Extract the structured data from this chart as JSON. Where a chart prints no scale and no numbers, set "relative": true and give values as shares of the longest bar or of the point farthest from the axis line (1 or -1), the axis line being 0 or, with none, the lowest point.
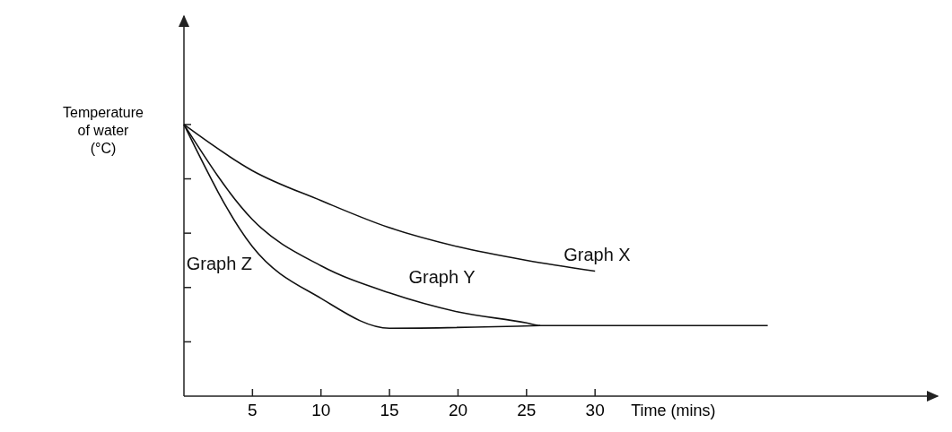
{
  "chart_data": {
    "type": "line",
    "relative": true,
    "ylabel": "Temperature of water (°C)",
    "xlabel": "Time (mins)",
    "xlim": [
      0,
      55
    ],
    "xticks": [
      5,
      10,
      15,
      20,
      25,
      30
    ],
    "marker": "none",
    "line_style": "solid",
    "legend": false,
    "grid": false,
    "series": [
      {
        "name": "Graph X",
        "color": "#111111",
        "x": [
          0,
          5,
          10,
          15,
          20,
          25,
          30
        ],
        "values": [
          1,
          0.83,
          0.72,
          0.62,
          0.55,
          0.5,
          0.46
        ]
      },
      {
        "name": "Graph Y",
        "color": "#111111",
        "x": [
          0,
          5,
          10,
          15,
          20,
          25,
          26,
          42.6
        ],
        "values": [
          1,
          0.65,
          0.48,
          0.38,
          0.31,
          0.27,
          0.26,
          0.26
        ]
      },
      {
        "name": "Graph Z",
        "color": "#111111",
        "x": [
          0,
          5,
          10,
          15,
          26
        ],
        "values": [
          1,
          0.55,
          0.36,
          0.25,
          0.26
        ]
      }
    ]
  }
}
